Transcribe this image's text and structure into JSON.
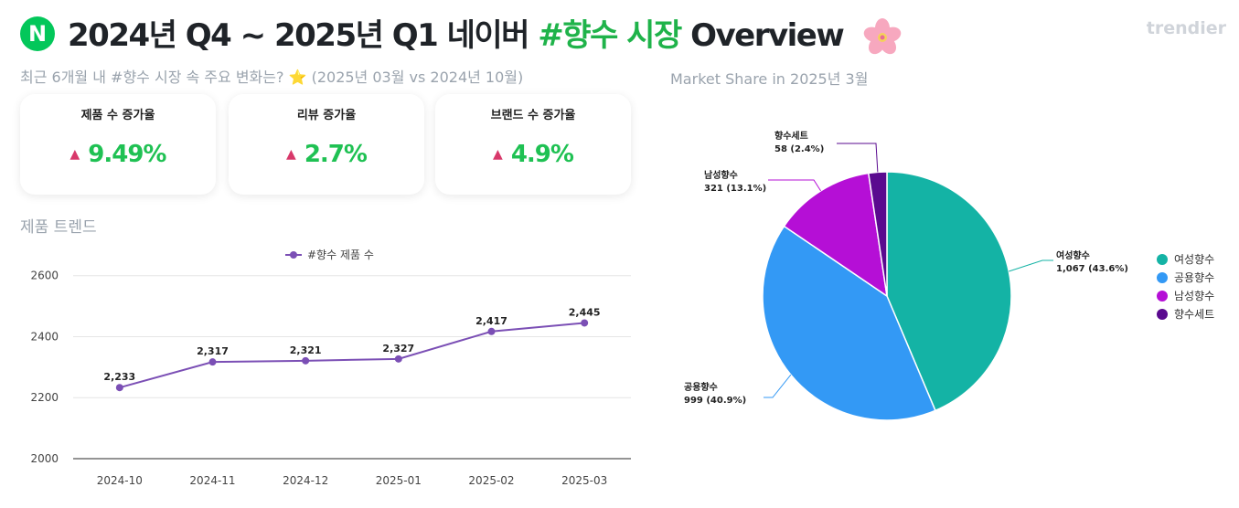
{
  "header": {
    "logo_letter": "N",
    "title_main": "2024년 Q4 ~ 2025년 Q1 네이버 ",
    "title_highlight": "#향수 시장",
    "title_suffix": " Overview",
    "brand": "trendier"
  },
  "subtitle": {
    "text": "최근 6개월 내 #향수 시장 속 주요 변화는? ",
    "star": "⭐",
    "period": " (2025년 03월 vs 2024년 10월)"
  },
  "cards": [
    {
      "label": "제품 수 증가율",
      "value": "9.49%"
    },
    {
      "label": "리뷰 증가율",
      "value": "2.7%"
    },
    {
      "label": "브랜드 수 증가율",
      "value": "4.9%"
    }
  ],
  "colors": {
    "accent_green": "#1fc153",
    "up_arrow": "#d8386a",
    "line": "#7b4fb5"
  },
  "trend_title": "제품 트렌드",
  "pie_title": "Market Share in 2025년 3월",
  "chart_data": [
    {
      "type": "line",
      "title": "",
      "legend": "top-center",
      "series": [
        {
          "name": "#향수 제품 수",
          "color": "#7b4fb5",
          "values": [
            2233,
            2317,
            2321,
            2327,
            2417,
            2445
          ]
        }
      ],
      "categories": [
        "2024-10",
        "2024-11",
        "2024-12",
        "2025-01",
        "2025-02",
        "2025-03"
      ],
      "data_labels": [
        "2,233",
        "2,317",
        "2,321",
        "2,327",
        "2,417",
        "2,445"
      ],
      "ylim": [
        2000,
        2650
      ],
      "yticks": [
        2000,
        2200,
        2400,
        2600
      ],
      "grid": true
    },
    {
      "type": "pie",
      "legend": "right",
      "slices": [
        {
          "name": "여성향수",
          "value": 1067,
          "label": "1,067 (43.6%)",
          "color": "#14b3a5"
        },
        {
          "name": "공용향수",
          "value": 999,
          "label": "999 (40.9%)",
          "color": "#3399f5"
        },
        {
          "name": "남성향수",
          "value": 321,
          "label": "321 (13.1%)",
          "color": "#b50fd6"
        },
        {
          "name": "향수세트",
          "value": 58,
          "label": "58 (2.4%)",
          "color": "#5a0a8f"
        }
      ]
    }
  ]
}
